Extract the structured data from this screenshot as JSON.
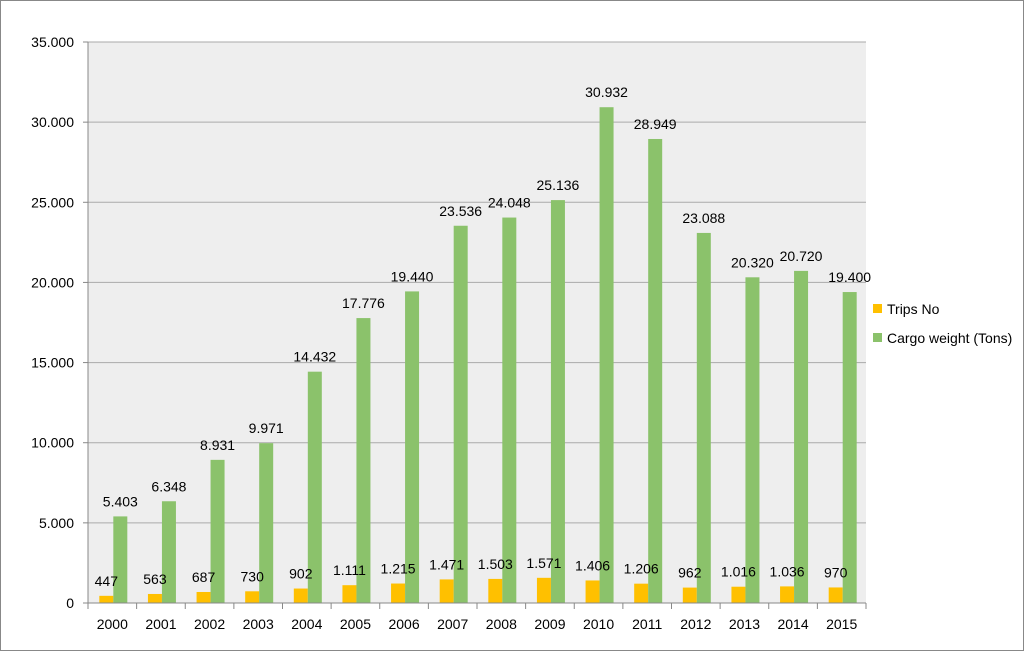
{
  "chart_data": {
    "type": "bar",
    "categories": [
      "2000",
      "2001",
      "2002",
      "2003",
      "2004",
      "2005",
      "2006",
      "2007",
      "2008",
      "2009",
      "2010",
      "2011",
      "2012",
      "2013",
      "2014",
      "2015"
    ],
    "series": [
      {
        "name": "Trips No",
        "color": "#FFC000",
        "values": [
          447,
          563,
          687,
          730,
          902,
          1111,
          1215,
          1471,
          1503,
          1571,
          1406,
          1206,
          962,
          1016,
          1036,
          970
        ],
        "labels": [
          "447",
          "563",
          "687",
          "730",
          "902",
          "1.111",
          "1.215",
          "1.471",
          "1.503",
          "1.571",
          "1.406",
          "1.206",
          "962",
          "1.016",
          "1.036",
          "970"
        ]
      },
      {
        "name": "Cargo weight (Tons)",
        "color": "#8BC26B",
        "values": [
          5403,
          6348,
          8931,
          9971,
          14432,
          17776,
          19440,
          23536,
          24048,
          25136,
          30932,
          28949,
          23088,
          20320,
          20720,
          19400
        ],
        "labels": [
          "5.403",
          "6.348",
          "8.931",
          "9.971",
          "14.432",
          "17.776",
          "19.440",
          "23.536",
          "24.048",
          "25.136",
          "30.932",
          "28.949",
          "23.088",
          "20.320",
          "20.720",
          "19.400"
        ]
      }
    ],
    "ylim": [
      0,
      35000
    ],
    "yticks": [
      0,
      5000,
      10000,
      15000,
      20000,
      25000,
      30000,
      35000
    ],
    "ytick_labels": [
      "0",
      "5.000",
      "10.000",
      "15.000",
      "20.000",
      "25.000",
      "30.000",
      "35.000"
    ],
    "grid": true,
    "legend_position": "right",
    "plot_background": "#EEEEEE",
    "gridline_color": "#AAAAAA"
  }
}
